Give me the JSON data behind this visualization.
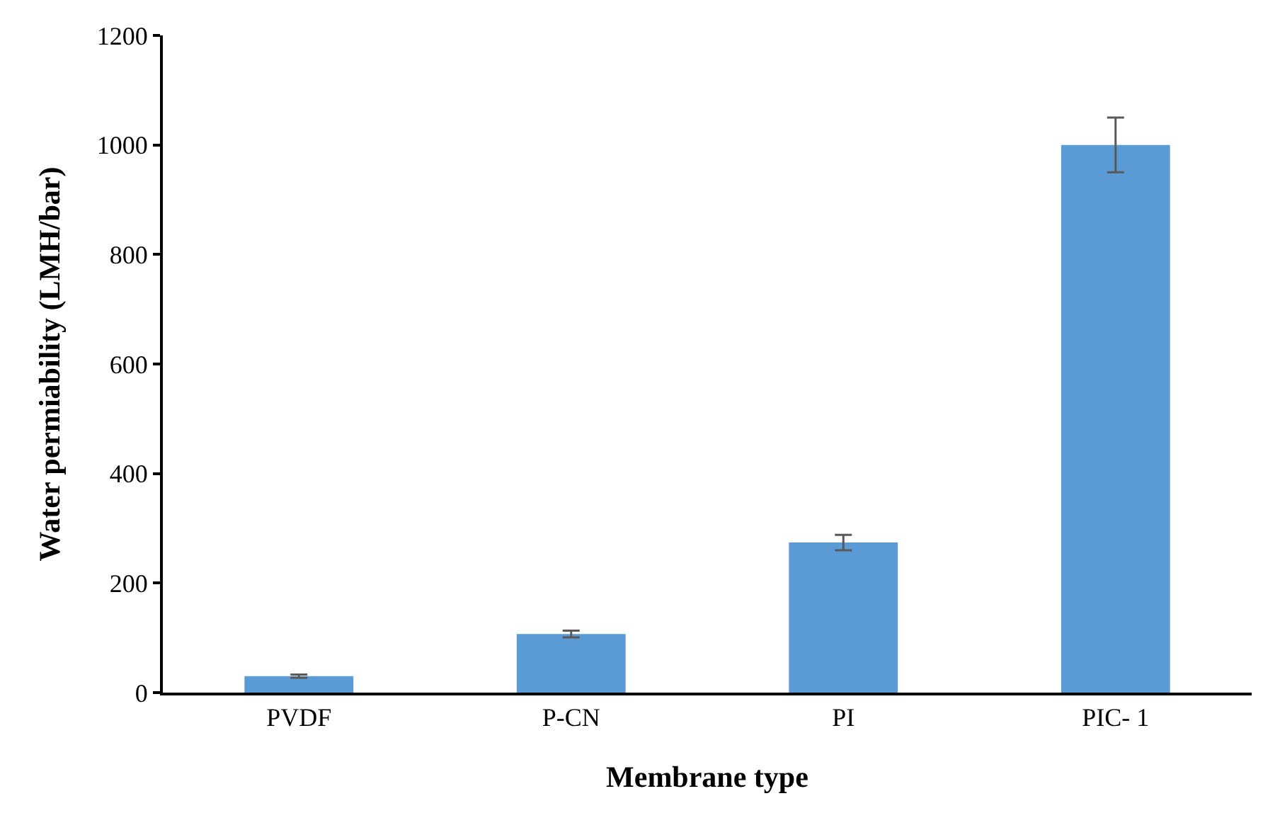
{
  "chart_data": {
    "type": "bar",
    "xlabel": "Membrane type",
    "ylabel": "Water permiability (LMH/bar)",
    "categories": [
      "PVDF",
      "P-CN",
      "PI",
      "PIC- 1"
    ],
    "values": [
      30,
      107,
      274,
      1000
    ],
    "errors": [
      3,
      6,
      14,
      50
    ],
    "color": "#5b9bd5",
    "ylim": [
      0,
      1200
    ],
    "yticks": [
      0,
      200,
      400,
      600,
      800,
      1000,
      1200
    ],
    "grid": false
  }
}
